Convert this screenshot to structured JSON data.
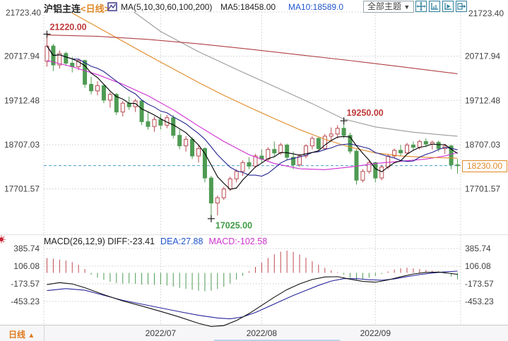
{
  "header": {
    "top_left_price": "21723.40",
    "title": "沪铝主连",
    "period_tag": "<日线>",
    "ma_params": "MA(5,10,30,60,100,200)",
    "ma5_label": "MA5:18458.00",
    "ma10_label": "MA10:18589.0",
    "theme_button": "全部主题",
    "theme_arrow": "▼",
    "top_right_price": "21723.40"
  },
  "icons": {
    "title_chart_icon": "chart-icon",
    "toolbar": [
      "pan-icon",
      "axis-zoom-icon",
      "axis-forward-icon",
      "export-icon"
    ],
    "macd_settings_icon": "settings-icon"
  },
  "price_axis_labels": [
    "21723.40",
    "20717.94",
    "19712.48",
    "18707.03",
    "17701.57"
  ],
  "macd_axis_labels": [
    "385.74",
    "106.08",
    "-173.57",
    "-453.23"
  ],
  "annotations": {
    "marked_high": "21220.00",
    "marked_high2": "19250.00",
    "marked_low": "17025.00",
    "last_price": "18230.00"
  },
  "macd_header": {
    "params": "MACD(26,12,9)",
    "diff": "DIFF:-23.41",
    "dea": "DEA:27.88",
    "macd": "MACD:-102.58"
  },
  "bottom_bar": {
    "period_label": "日线",
    "period_arrow": "▲",
    "dates": [
      "2022/07",
      "2022/08",
      "2022/09"
    ]
  },
  "colors": {
    "up": "#b94a50",
    "down": "#4e9b53",
    "ma5": "#000000",
    "ma10": "#24248f",
    "ma30": "#d12fd1",
    "ma60": "#9a9a9a",
    "ma100": "#e08a28",
    "ma200": "#b04044",
    "diff": "#111111",
    "dea": "#26269c",
    "hist_pos": "#c04a50",
    "hist_neg": "#4e9b53",
    "last_price_line": "#4aa0c8",
    "accent_orange": "#e08a28",
    "annotation_high": "#c03a3a",
    "annotation_low": "#3f9b44",
    "grid": "#cccccc",
    "axis_text": "#404040",
    "toolbar_icon": "#2f7f9d"
  },
  "chart_data": {
    "type": "candlestick+macd",
    "symbol": "沪铝主连",
    "period": "日线",
    "price_ticks": [
      21723.4,
      20717.94,
      19712.48,
      18707.03,
      17701.57
    ],
    "price_ylim": [
      16700,
      21723.4
    ],
    "macd_ticks": [
      385.74,
      106.08,
      -173.57,
      -453.23
    ],
    "x_month_ticks": [
      {
        "label": "2022/07",
        "index": 18
      },
      {
        "label": "2022/08",
        "index": 34
      },
      {
        "label": "2022/09",
        "index": 52
      }
    ],
    "marked_high": 21220.0,
    "marked_high2": 19250.0,
    "marked_low": 17025.0,
    "last_price": 18230.0,
    "ma5_value": 18458.0,
    "ma10_value": 18589.0,
    "macd_values": {
      "diff": -23.41,
      "dea": 27.88,
      "macd": -102.58
    },
    "candles": [
      [
        20600,
        21220,
        20480,
        20950
      ],
      [
        20950,
        21000,
        20380,
        20520
      ],
      [
        20520,
        20850,
        20440,
        20780
      ],
      [
        20780,
        20820,
        20500,
        20560
      ],
      [
        20560,
        20700,
        20350,
        20480
      ],
      [
        20480,
        20650,
        20400,
        20620
      ],
      [
        20620,
        20640,
        20000,
        20080
      ],
      [
        20080,
        20250,
        19850,
        19930
      ],
      [
        19930,
        20150,
        19830,
        20050
      ],
      [
        20050,
        20080,
        19650,
        19720
      ],
      [
        19720,
        19900,
        19550,
        19850
      ],
      [
        19850,
        19880,
        19380,
        19450
      ],
      [
        19450,
        19700,
        19350,
        19650
      ],
      [
        19650,
        19800,
        19500,
        19570
      ],
      [
        19570,
        19750,
        19450,
        19700
      ],
      [
        19700,
        19720,
        19150,
        19230
      ],
      [
        19230,
        19450,
        19050,
        19120
      ],
      [
        19120,
        19350,
        19000,
        19280
      ],
      [
        19280,
        19400,
        19050,
        19150
      ],
      [
        19150,
        19380,
        19080,
        19320
      ],
      [
        19320,
        19380,
        18850,
        18920
      ],
      [
        18920,
        19050,
        18600,
        18680
      ],
      [
        18680,
        18900,
        18550,
        18830
      ],
      [
        18830,
        18880,
        18380,
        18450
      ],
      [
        18450,
        18700,
        18300,
        18620
      ],
      [
        18620,
        18650,
        17850,
        17950
      ],
      [
        17950,
        18000,
        17025,
        17380
      ],
      [
        17380,
        17550,
        17100,
        17500
      ],
      [
        17500,
        17750,
        17450,
        17700
      ],
      [
        17700,
        17980,
        17650,
        17930
      ],
      [
        17930,
        18150,
        17850,
        18100
      ],
      [
        18100,
        18350,
        18000,
        18300
      ],
      [
        18300,
        18420,
        18150,
        18220
      ],
      [
        18220,
        18500,
        18180,
        18450
      ],
      [
        18450,
        18600,
        18300,
        18380
      ],
      [
        18380,
        18650,
        18320,
        18600
      ],
      [
        18600,
        18780,
        18450,
        18520
      ],
      [
        18520,
        18750,
        18480,
        18700
      ],
      [
        18700,
        18730,
        18350,
        18420
      ],
      [
        18420,
        18550,
        18150,
        18250
      ],
      [
        18250,
        18500,
        18200,
        18450
      ],
      [
        18450,
        18720,
        18400,
        18680
      ],
      [
        18680,
        18900,
        18600,
        18850
      ],
      [
        18850,
        18880,
        18550,
        18620
      ],
      [
        18620,
        18950,
        18580,
        18900
      ],
      [
        18900,
        19100,
        18800,
        18950
      ],
      [
        18950,
        19150,
        18850,
        19080
      ],
      [
        19080,
        19250,
        18850,
        18920
      ],
      [
        18920,
        18980,
        18500,
        18560
      ],
      [
        18560,
        18600,
        17800,
        17900
      ],
      [
        17900,
        18150,
        17850,
        18100
      ],
      [
        18100,
        18350,
        18050,
        18300
      ],
      [
        18300,
        18320,
        17850,
        17950
      ],
      [
        17950,
        18250,
        17900,
        18200
      ],
      [
        18200,
        18500,
        18150,
        18450
      ],
      [
        18450,
        18620,
        18400,
        18580
      ],
      [
        18580,
        18700,
        18450,
        18520
      ],
      [
        18520,
        18750,
        18500,
        18700
      ],
      [
        18700,
        18780,
        18580,
        18650
      ],
      [
        18650,
        18820,
        18600,
        18780
      ],
      [
        18780,
        18850,
        18650,
        18720
      ],
      [
        18720,
        18800,
        18600,
        18760
      ],
      [
        18760,
        18800,
        18550,
        18620
      ],
      [
        18620,
        18720,
        18500,
        18680
      ],
      [
        18680,
        18700,
        18150,
        18250
      ],
      [
        18250,
        18380,
        18050,
        18230
      ]
    ],
    "ma_lines": [
      {
        "name": "MA30",
        "color_key": "ma30",
        "points": [
          [
            0,
            20620
          ],
          [
            4,
            20480
          ],
          [
            8,
            20300
          ],
          [
            12,
            20080
          ],
          [
            16,
            19820
          ],
          [
            20,
            19500
          ],
          [
            24,
            19130
          ],
          [
            28,
            18780
          ],
          [
            32,
            18480
          ],
          [
            36,
            18280
          ],
          [
            40,
            18160
          ],
          [
            44,
            18140
          ],
          [
            48,
            18200
          ],
          [
            52,
            18280
          ],
          [
            56,
            18330
          ],
          [
            60,
            18380
          ],
          [
            63,
            18450
          ],
          [
            65,
            18530
          ]
        ]
      },
      {
        "name": "MA60",
        "color_key": "ma60",
        "points": [
          [
            12,
            21900
          ],
          [
            14,
            21700
          ],
          [
            18,
            21280
          ],
          [
            24,
            20820
          ],
          [
            30,
            20420
          ],
          [
            36,
            20030
          ],
          [
            42,
            19640
          ],
          [
            47,
            19290
          ],
          [
            52,
            19110
          ],
          [
            58,
            18990
          ],
          [
            65,
            18900
          ]
        ]
      },
      {
        "name": "MA100",
        "color_key": "ma100",
        "points": [
          [
            4,
            21700
          ],
          [
            8,
            21380
          ],
          [
            12,
            21060
          ],
          [
            16,
            20740
          ],
          [
            20,
            20430
          ],
          [
            24,
            20120
          ],
          [
            28,
            19830
          ],
          [
            32,
            19560
          ],
          [
            36,
            19300
          ],
          [
            40,
            19050
          ],
          [
            44,
            18830
          ],
          [
            48,
            18650
          ],
          [
            52,
            18520
          ],
          [
            56,
            18450
          ],
          [
            60,
            18420
          ],
          [
            65,
            18400
          ]
        ]
      },
      {
        "name": "MA200",
        "color_key": "ma200",
        "points": [
          [
            0,
            21200
          ],
          [
            8,
            21170
          ],
          [
            16,
            21100
          ],
          [
            24,
            21000
          ],
          [
            32,
            20880
          ],
          [
            40,
            20750
          ],
          [
            48,
            20620
          ],
          [
            56,
            20480
          ],
          [
            65,
            20320
          ]
        ]
      }
    ],
    "macd": {
      "hist": [
        235,
        225,
        210,
        195,
        170,
        130,
        60,
        -30,
        -75,
        -110,
        -140,
        -160,
        -172,
        -165,
        -172,
        -185,
        -182,
        -192,
        -185,
        -200,
        -218,
        -238,
        -252,
        -268,
        -282,
        -290,
        -282,
        -255,
        -218,
        -168,
        -108,
        -48,
        25,
        95,
        165,
        235,
        295,
        335,
        352,
        332,
        292,
        240,
        185,
        130,
        80,
        40,
        10,
        -28,
        -75,
        -118,
        -108,
        -78,
        -48,
        -18,
        22,
        52,
        72,
        82,
        72,
        62,
        46,
        36,
        26,
        -14,
        -58,
        -102.58
      ],
      "diff_points": [
        [
          0,
          -185
        ],
        [
          2,
          -155
        ],
        [
          4,
          -175
        ],
        [
          6,
          -235
        ],
        [
          9,
          -345
        ],
        [
          12,
          -445
        ],
        [
          15,
          -525
        ],
        [
          18,
          -610
        ],
        [
          21,
          -700
        ],
        [
          24,
          -800
        ],
        [
          26,
          -850
        ],
        [
          28,
          -835
        ],
        [
          30,
          -755
        ],
        [
          32,
          -645
        ],
        [
          34,
          -515
        ],
        [
          36,
          -385
        ],
        [
          38,
          -265
        ],
        [
          40,
          -175
        ],
        [
          42,
          -105
        ],
        [
          44,
          -65
        ],
        [
          46,
          -60
        ],
        [
          48,
          -100
        ],
        [
          50,
          -135
        ],
        [
          52,
          -148
        ],
        [
          54,
          -112
        ],
        [
          56,
          -62
        ],
        [
          58,
          -18
        ],
        [
          60,
          8
        ],
        [
          62,
          12
        ],
        [
          63,
          2
        ],
        [
          65,
          -23.41
        ]
      ],
      "dea_points": [
        [
          0,
          -280
        ],
        [
          3,
          -250
        ],
        [
          6,
          -275
        ],
        [
          9,
          -355
        ],
        [
          12,
          -435
        ],
        [
          15,
          -495
        ],
        [
          18,
          -555
        ],
        [
          21,
          -615
        ],
        [
          24,
          -672
        ],
        [
          27,
          -715
        ],
        [
          29,
          -728
        ],
        [
          31,
          -698
        ],
        [
          33,
          -628
        ],
        [
          35,
          -538
        ],
        [
          37,
          -448
        ],
        [
          39,
          -358
        ],
        [
          41,
          -278
        ],
        [
          43,
          -198
        ],
        [
          45,
          -130
        ],
        [
          47,
          -92
        ],
        [
          49,
          -92
        ],
        [
          51,
          -108
        ],
        [
          53,
          -116
        ],
        [
          55,
          -96
        ],
        [
          57,
          -60
        ],
        [
          59,
          -28
        ],
        [
          61,
          -2
        ],
        [
          63,
          16
        ],
        [
          65,
          27.88
        ]
      ]
    }
  }
}
